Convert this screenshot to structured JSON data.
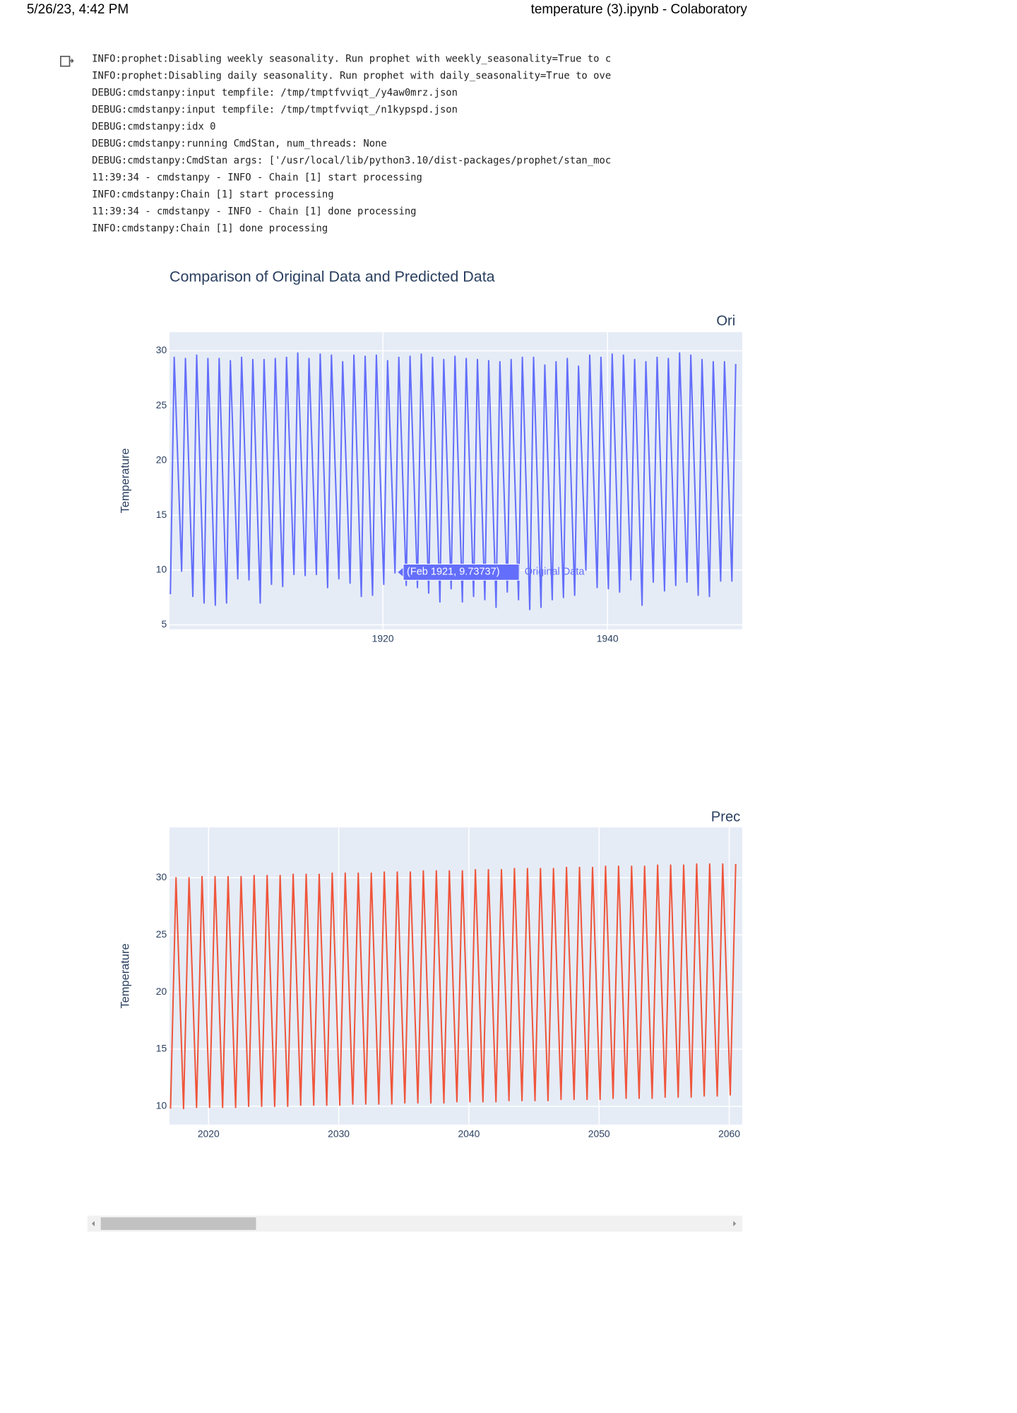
{
  "header": {
    "date": "5/26/23, 4:42 PM",
    "title": "temperature (3).ipynb - Colaboratory"
  },
  "log": [
    "INFO:prophet:Disabling weekly seasonality. Run prophet with weekly_seasonality=True to c",
    "INFO:prophet:Disabling daily seasonality. Run prophet with daily_seasonality=True to ove",
    "DEBUG:cmdstanpy:input tempfile: /tmp/tmptfvviqt_/y4aw0mrz.json",
    "DEBUG:cmdstanpy:input tempfile: /tmp/tmptfvviqt_/n1kypspd.json",
    "DEBUG:cmdstanpy:idx 0",
    "DEBUG:cmdstanpy:running CmdStan, num_threads: None",
    "DEBUG:cmdstanpy:CmdStan args: ['/usr/local/lib/python3.10/dist-packages/prophet/stan_moc",
    "11:39:34 - cmdstanpy - INFO - Chain [1] start processing",
    "INFO:cmdstanpy:Chain [1] start processing",
    "11:39:34 - cmdstanpy - INFO - Chain [1] done processing",
    "INFO:cmdstanpy:Chain [1] done processing"
  ],
  "chart_data": [
    {
      "type": "line",
      "title": "Comparison of Original Data and Predicted Data",
      "subplot_title": "Ori",
      "y_label": "Temperature",
      "grid": true,
      "hover_label": "(Feb 1921, 9.73737)",
      "xlim": [
        1901,
        1952
      ],
      "ylim": [
        4.6,
        31.7
      ],
      "xticks": [
        1920,
        1940
      ],
      "yticks": [
        5,
        10,
        15,
        20,
        25,
        30
      ],
      "x": [
        1901.08,
        1901.42,
        1902.08,
        1902.42,
        1903.08,
        1903.42,
        1904.08,
        1904.42,
        1905.08,
        1905.42,
        1906.08,
        1906.42,
        1907.08,
        1907.42,
        1908.08,
        1908.42,
        1909.08,
        1909.42,
        1910.08,
        1910.42,
        1911.08,
        1911.42,
        1912.08,
        1912.42,
        1913.08,
        1913.42,
        1914.08,
        1914.42,
        1915.08,
        1915.42,
        1916.08,
        1916.42,
        1917.08,
        1917.42,
        1918.08,
        1918.42,
        1919.08,
        1919.42,
        1920.08,
        1920.42,
        1921.08,
        1921.42,
        1922.08,
        1922.42,
        1923.08,
        1923.42,
        1924.08,
        1924.42,
        1925.08,
        1925.42,
        1926.08,
        1926.42,
        1927.08,
        1927.42,
        1928.08,
        1928.42,
        1929.08,
        1929.42,
        1930.08,
        1930.42,
        1931.08,
        1931.42,
        1932.08,
        1932.42,
        1933.08,
        1933.42,
        1934.08,
        1934.42,
        1935.08,
        1935.42,
        1936.08,
        1936.42,
        1937.08,
        1937.42,
        1938.08,
        1938.42,
        1939.08,
        1939.42,
        1940.08,
        1940.42,
        1941.08,
        1941.42,
        1942.08,
        1942.42,
        1943.08,
        1943.42,
        1944.08,
        1944.42,
        1945.08,
        1945.42,
        1946.08,
        1946.42,
        1947.08,
        1947.42,
        1948.08,
        1948.42,
        1949.08,
        1949.42,
        1950.08,
        1950.42,
        1951.08,
        1951.42
      ],
      "series": [
        {
          "name": "Original Data",
          "color": "#636efa",
          "values": [
            7.8,
            29.4,
            9.9,
            29.3,
            7.6,
            29.6,
            7.0,
            29.3,
            6.8,
            29.3,
            7.0,
            29.1,
            9.2,
            29.4,
            9.1,
            29.2,
            7.0,
            29.2,
            8.7,
            29.3,
            8.5,
            29.4,
            9.6,
            29.8,
            9.5,
            29.3,
            9.6,
            29.7,
            8.4,
            29.6,
            9.2,
            29.0,
            8.8,
            29.6,
            7.6,
            29.5,
            7.7,
            29.6,
            8.7,
            29.1,
            9.73737,
            29.4,
            8.6,
            29.5,
            8.4,
            29.7,
            7.9,
            29.4,
            7.1,
            29.2,
            8.3,
            29.5,
            7.1,
            29.3,
            7.6,
            29.2,
            7.3,
            29.1,
            6.6,
            29.0,
            8.0,
            29.2,
            7.3,
            29.4,
            6.4,
            29.4,
            6.6,
            28.7,
            7.3,
            29.0,
            7.5,
            29.3,
            7.7,
            28.6,
            10.0,
            29.6,
            8.4,
            29.4,
            8.3,
            29.7,
            8.0,
            29.6,
            9.1,
            29.2,
            6.8,
            29.0,
            8.9,
            29.4,
            8.1,
            29.3,
            8.6,
            29.8,
            8.9,
            29.6,
            7.7,
            29.2,
            7.6,
            29.0,
            9.0,
            29.0,
            9.0,
            28.8
          ]
        }
      ]
    },
    {
      "type": "line",
      "subplot_title": "Prec",
      "y_label": "Temperature",
      "grid": true,
      "xlim": [
        2017,
        2061
      ],
      "ylim": [
        8.4,
        34.4
      ],
      "xticks": [
        2020,
        2030,
        2040,
        2050,
        2060
      ],
      "yticks": [
        10,
        15,
        20,
        25,
        30
      ],
      "x": [
        2017.08,
        2017.5,
        2018.08,
        2018.5,
        2019.08,
        2019.5,
        2020.08,
        2020.5,
        2021.08,
        2021.5,
        2022.08,
        2022.5,
        2023.08,
        2023.5,
        2024.08,
        2024.5,
        2025.08,
        2025.5,
        2026.08,
        2026.5,
        2027.08,
        2027.5,
        2028.08,
        2028.5,
        2029.08,
        2029.5,
        2030.08,
        2030.5,
        2031.08,
        2031.5,
        2032.08,
        2032.5,
        2033.08,
        2033.5,
        2034.08,
        2034.5,
        2035.08,
        2035.5,
        2036.08,
        2036.5,
        2037.08,
        2037.5,
        2038.08,
        2038.5,
        2039.08,
        2039.5,
        2040.08,
        2040.5,
        2041.08,
        2041.5,
        2042.08,
        2042.5,
        2043.08,
        2043.5,
        2044.08,
        2044.5,
        2045.08,
        2045.5,
        2046.08,
        2046.5,
        2047.08,
        2047.5,
        2048.08,
        2048.5,
        2049.08,
        2049.5,
        2050.08,
        2050.5,
        2051.08,
        2051.5,
        2052.08,
        2052.5,
        2053.08,
        2053.5,
        2054.08,
        2054.5,
        2055.08,
        2055.5,
        2056.08,
        2056.5,
        2057.08,
        2057.5,
        2058.08,
        2058.5,
        2059.08,
        2059.5,
        2060.08,
        2060.5
      ],
      "series": [
        {
          "color": "#ef553b",
          "values": [
            9.8,
            30.0,
            9.8,
            30.0,
            9.9,
            30.1,
            9.9,
            30.1,
            9.9,
            30.1,
            9.9,
            30.1,
            10.0,
            30.2,
            10.0,
            30.2,
            10.0,
            30.2,
            10.0,
            30.3,
            10.1,
            30.3,
            10.1,
            30.3,
            10.1,
            30.4,
            10.1,
            30.4,
            10.2,
            30.4,
            10.2,
            30.4,
            10.2,
            30.5,
            10.2,
            30.5,
            10.3,
            30.5,
            10.3,
            30.6,
            10.3,
            30.6,
            10.3,
            30.6,
            10.4,
            30.6,
            10.4,
            30.7,
            10.4,
            30.7,
            10.4,
            30.7,
            10.5,
            30.8,
            10.5,
            30.8,
            10.5,
            30.8,
            10.5,
            30.8,
            10.6,
            30.9,
            10.6,
            30.9,
            10.6,
            30.9,
            10.6,
            31.0,
            10.7,
            31.0,
            10.7,
            31.0,
            10.7,
            31.0,
            10.7,
            31.1,
            10.8,
            31.1,
            10.8,
            31.1,
            10.8,
            31.2,
            10.9,
            31.2,
            10.9,
            31.2,
            11.0,
            31.2
          ]
        }
      ]
    }
  ]
}
